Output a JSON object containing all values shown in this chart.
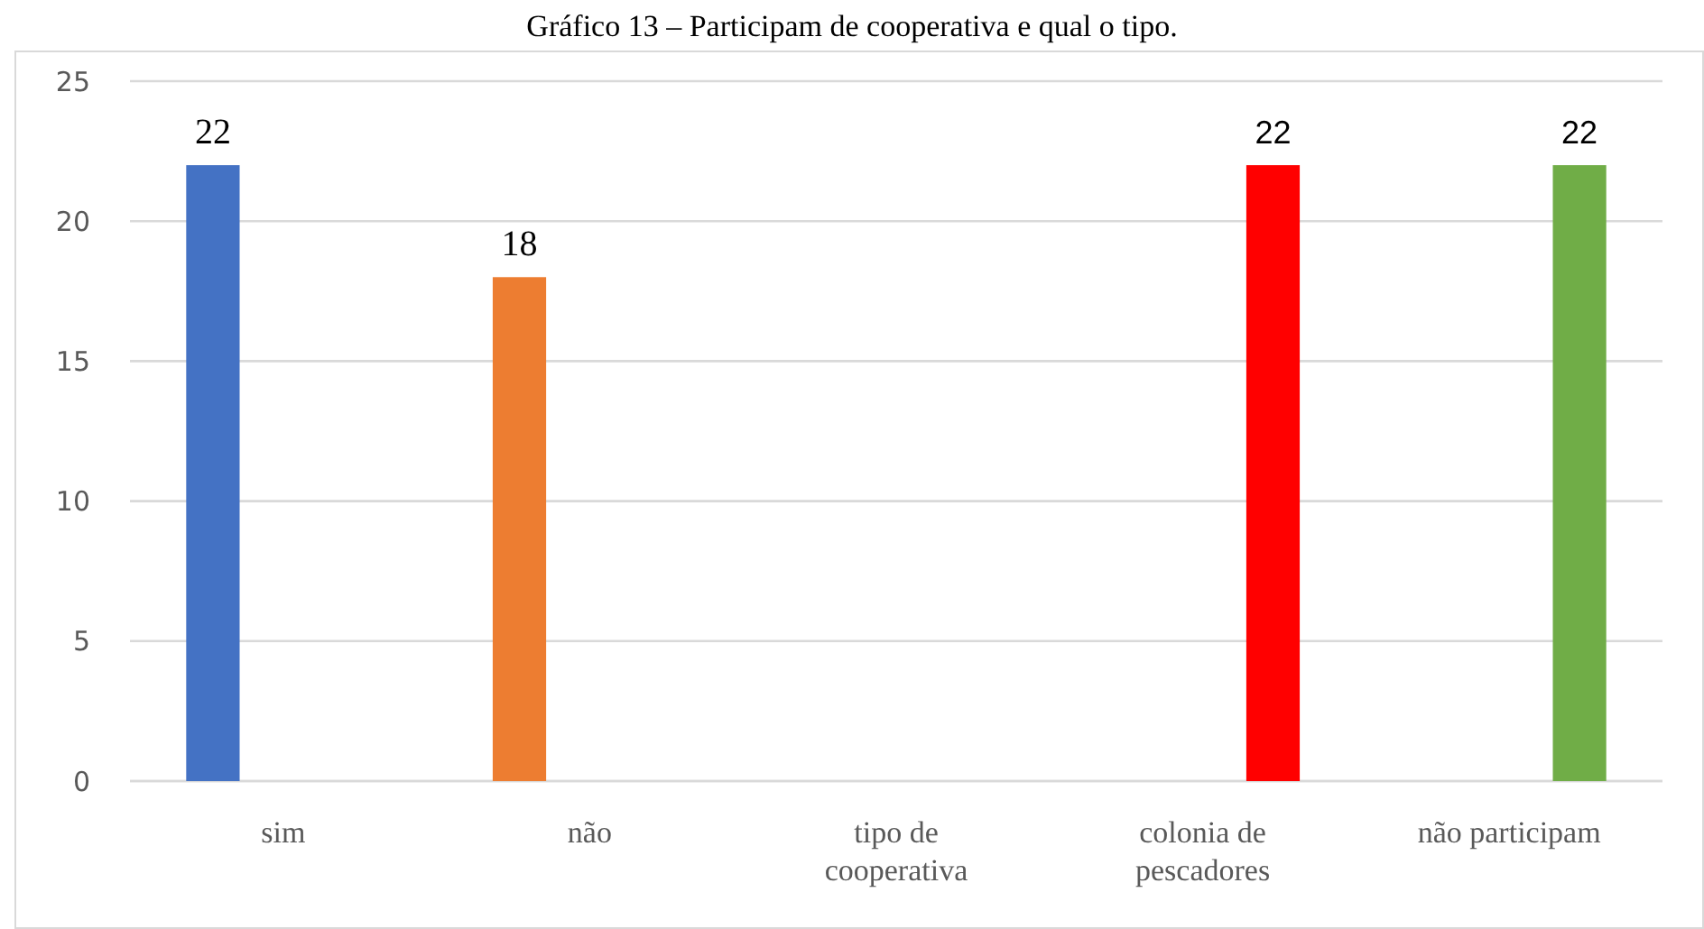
{
  "chart_data": {
    "type": "bar",
    "title": "Gráfico 13 – Participam de cooperativa e qual o tipo.",
    "categories": [
      "sim",
      "não",
      "tipo de cooperativa",
      "colonia de pescadores",
      "não participam"
    ],
    "series": [
      {
        "colors": [
          "#4472c4",
          "#ed7d31",
          null,
          null,
          null
        ],
        "values": [
          22,
          18,
          null,
          null,
          null
        ]
      },
      {
        "colors": [
          null,
          null,
          null,
          "#ff0000",
          "#70ad47"
        ],
        "values": [
          null,
          null,
          null,
          22,
          22
        ]
      }
    ],
    "ylim": [
      0,
      25
    ],
    "yticks": [
      0,
      5,
      10,
      15,
      20,
      25
    ],
    "grid": "y",
    "data_labels": true
  }
}
